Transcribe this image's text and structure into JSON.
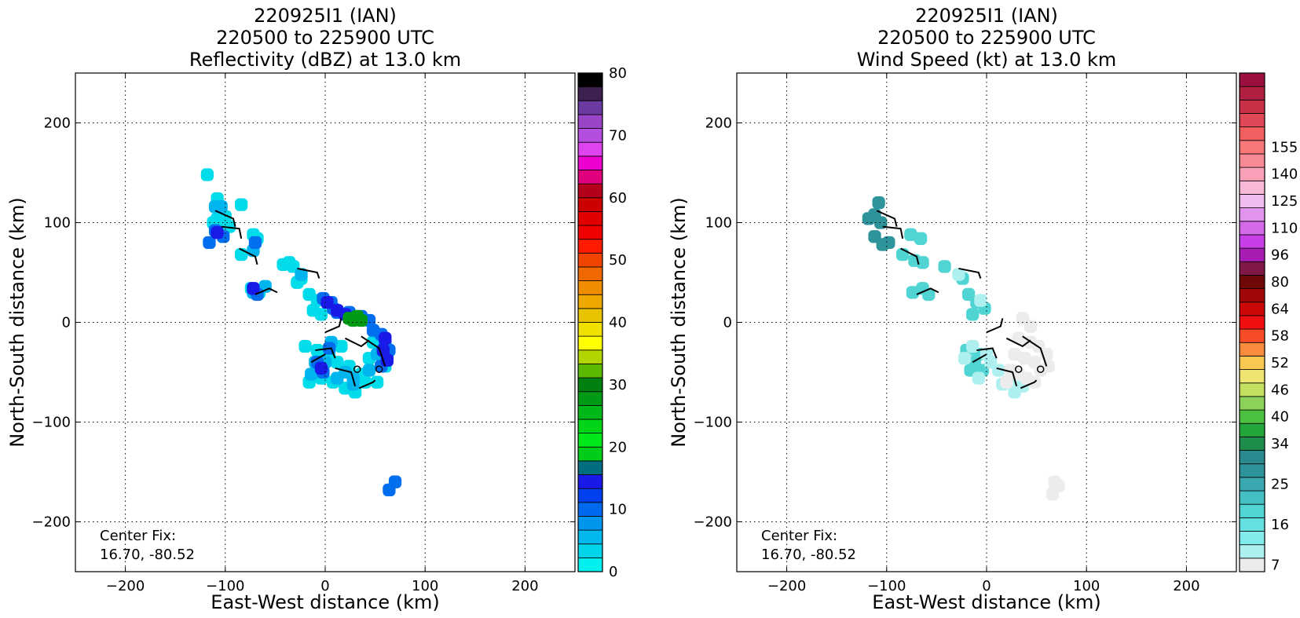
{
  "chart_data": [
    {
      "type": "heatmap",
      "title_lines": [
        "220925I1 (IAN)",
        "220500 to 225900 UTC",
        "Reflectivity (dBZ) at 13.0 km"
      ],
      "xlabel": "East-West distance (km)",
      "ylabel": "North-South distance (km)",
      "xlim": [
        -250,
        250
      ],
      "ylim": [
        -250,
        250
      ],
      "x_ticks": [
        -200,
        -100,
        0,
        100,
        200
      ],
      "y_ticks": [
        -200,
        -100,
        0,
        100,
        200
      ],
      "grid": true,
      "annotation_lines": [
        "Center Fix:",
        "16.70, -80.52"
      ],
      "colorbar": {
        "min": 0,
        "max": 80,
        "tick_labels": [
          "0",
          "10",
          "20",
          "30",
          "40",
          "50",
          "60",
          "70",
          "80"
        ],
        "tick_values": [
          0,
          10,
          20,
          30,
          40,
          50,
          60,
          70,
          80
        ],
        "colors": [
          "#00f0f0",
          "#00d4ea",
          "#00b7ee",
          "#0096ee",
          "#006aee",
          "#0040ee",
          "#1a1ae8",
          "#006d80",
          "#00cc1a",
          "#00e81a",
          "#00d418",
          "#00b818",
          "#009a14",
          "#008010",
          "#5cb800",
          "#b4d400",
          "#ffff00",
          "#f0e000",
          "#e8c400",
          "#eea800",
          "#f08c00",
          "#f06800",
          "#f04400",
          "#ff1a00",
          "#f00000",
          "#e00000",
          "#cc0000",
          "#b4001c",
          "#e0007e",
          "#ee00d0",
          "#dd44ee",
          "#b44ee0",
          "#9a44c8",
          "#6a3aa0",
          "#3c2050",
          "#000000"
        ]
      },
      "fields": [
        {
          "color": "#00dcea",
          "cells": [
            [
              -112,
              100
            ],
            [
              -108,
              104
            ],
            [
              -104,
              100
            ],
            [
              -100,
              106
            ],
            [
              -96,
              96
            ],
            [
              -72,
              88
            ],
            [
              -68,
              84
            ],
            [
              -84,
              68
            ],
            [
              -74,
              34
            ],
            [
              -66,
              30
            ],
            [
              -42,
              58
            ],
            [
              -32,
              56
            ],
            [
              -24,
              44
            ],
            [
              -16,
              28
            ],
            [
              -8,
              22
            ],
            [
              -12,
              12
            ],
            [
              -4,
              8
            ],
            [
              -8,
              -28
            ],
            [
              4,
              -32
            ],
            [
              12,
              -40
            ],
            [
              24,
              -44
            ],
            [
              36,
              -52
            ],
            [
              40,
              -60
            ],
            [
              30,
              -70
            ],
            [
              20,
              -66
            ],
            [
              8,
              -60
            ],
            [
              -4,
              -56
            ],
            [
              -8,
              -48
            ],
            [
              44,
              -36
            ],
            [
              56,
              -28
            ],
            [
              48,
              -20
            ],
            [
              60,
              -44
            ],
            [
              -118,
              148
            ],
            [
              -108,
              124
            ],
            [
              -84,
              118
            ],
            [
              -36,
              60
            ],
            [
              -28,
              40
            ],
            [
              -20,
              -24
            ],
            [
              16,
              -24
            ],
            [
              52,
              -60
            ],
            [
              -16,
              -60
            ]
          ]
        },
        {
          "color": "#00b4ee",
          "cells": [
            [
              -110,
              116
            ],
            [
              -104,
              116
            ],
            [
              -72,
              72
            ],
            [
              -72,
              30
            ],
            [
              -60,
              36
            ],
            [
              -24,
              48
            ],
            [
              -10,
              -40
            ],
            [
              0,
              -40
            ],
            [
              6,
              -20
            ],
            [
              20,
              -50
            ],
            [
              28,
              -56
            ],
            [
              12,
              -56
            ],
            [
              52,
              -32
            ],
            [
              60,
              -20
            ],
            [
              44,
              -48
            ],
            [
              -14,
              -52
            ],
            [
              28,
              -62
            ]
          ]
        },
        {
          "color": "#006eee",
          "cells": [
            [
              -110,
              92
            ],
            [
              -102,
              86
            ],
            [
              -116,
              80
            ],
            [
              -70,
              80
            ],
            [
              -68,
              28
            ],
            [
              -2,
              24
            ],
            [
              6,
              20
            ],
            [
              8,
              14
            ],
            [
              12,
              10
            ],
            [
              24,
              10
            ],
            [
              36,
              6
            ],
            [
              44,
              2
            ],
            [
              56,
              -12
            ],
            [
              60,
              -22
            ],
            [
              62,
              -36
            ],
            [
              56,
              -44
            ],
            [
              -8,
              -40
            ],
            [
              -2,
              -50
            ],
            [
              4,
              -26
            ],
            [
              48,
              -8
            ],
            [
              64,
              -28
            ],
            [
              70,
              -160
            ],
            [
              64,
              -168
            ]
          ]
        },
        {
          "color": "#1a1ae8",
          "cells": [
            [
              -108,
              90
            ],
            [
              -72,
              34
            ],
            [
              2,
              20
            ],
            [
              12,
              12
            ],
            [
              20,
              8
            ],
            [
              60,
              -16
            ],
            [
              58,
              -28
            ],
            [
              62,
              -38
            ],
            [
              -4,
              -46
            ]
          ]
        },
        {
          "color": "#009a14",
          "cells": [
            [
              28,
              2
            ],
            [
              32,
              6
            ],
            [
              36,
              2
            ],
            [
              24,
              4
            ]
          ]
        }
      ]
    },
    {
      "type": "heatmap",
      "title_lines": [
        "220925I1 (IAN)",
        "220500 to 225900 UTC",
        "Wind Speed (kt) at 13.0 km"
      ],
      "xlabel": "East-West distance (km)",
      "ylabel": "North-South distance (km)",
      "xlim": [
        -250,
        250
      ],
      "ylim": [
        -250,
        250
      ],
      "x_ticks": [
        -200,
        -100,
        0,
        100,
        200
      ],
      "y_ticks": [
        -200,
        -100,
        0,
        100,
        200
      ],
      "grid": true,
      "annotation_lines": [
        "Center Fix:",
        "16.70, -80.52"
      ],
      "colorbar": {
        "min": 0,
        "max": 160,
        "tick_labels": [
          "7",
          "16",
          "25",
          "34",
          "40",
          "46",
          "52",
          "58",
          "64",
          "80",
          "96",
          "110",
          "125",
          "140",
          "155"
        ],
        "level_index": [
          0,
          3,
          6,
          9,
          11,
          13,
          15,
          17,
          19,
          21,
          23,
          25,
          27,
          29,
          31
        ],
        "colors": [
          "#ececec",
          "#aef0f0",
          "#82ecec",
          "#64e0e0",
          "#50d4d4",
          "#44c0c4",
          "#3aa8b0",
          "#2e949c",
          "#2a8a90",
          "#1e8c4a",
          "#22a63a",
          "#4cc040",
          "#8cd25a",
          "#c4e060",
          "#f0e470",
          "#f8c850",
          "#f88c3c",
          "#f84c28",
          "#f01010",
          "#cc0808",
          "#a00808",
          "#700808",
          "#801848",
          "#a81cb4",
          "#c83ee8",
          "#d46ae8",
          "#e094ee",
          "#f0bcee",
          "#f8b8d8",
          "#f8a0b8",
          "#f88a98",
          "#f87878",
          "#f06060",
          "#e04858",
          "#c83048",
          "#b01e40",
          "#9c1040"
        ]
      },
      "fields": [
        {
          "color": "#2e949c",
          "cells": [
            [
              -112,
              108
            ],
            [
              -106,
              100
            ],
            [
              -112,
              86
            ],
            [
              -104,
              78
            ],
            [
              -98,
              80
            ],
            [
              -108,
              120
            ],
            [
              -118,
              104
            ]
          ]
        },
        {
          "color": "#50d4d4",
          "cells": [
            [
              -76,
              88
            ],
            [
              -66,
              84
            ],
            [
              -84,
              68
            ],
            [
              -72,
              62
            ],
            [
              -64,
              60
            ],
            [
              -74,
              30
            ],
            [
              -64,
              34
            ],
            [
              -58,
              28
            ],
            [
              -42,
              56
            ],
            [
              -24,
              44
            ],
            [
              -18,
              28
            ],
            [
              -10,
              20
            ],
            [
              -2,
              14
            ],
            [
              -14,
              8
            ],
            [
              -20,
              -28
            ],
            [
              -8,
              -32
            ],
            [
              -12,
              -40
            ],
            [
              -16,
              -48
            ],
            [
              -4,
              -48
            ]
          ]
        },
        {
          "color": "#aef0f0",
          "cells": [
            [
              -28,
              48
            ],
            [
              -6,
              22
            ],
            [
              -22,
              -36
            ],
            [
              -14,
              -24
            ],
            [
              0,
              -32
            ],
            [
              4,
              -40
            ],
            [
              12,
              -48
            ],
            [
              24,
              -58
            ],
            [
              36,
              -64
            ],
            [
              28,
              -70
            ],
            [
              16,
              -62
            ],
            [
              -8,
              -56
            ]
          ]
        },
        {
          "color": "#ececec",
          "cells": [
            [
              36,
              4
            ],
            [
              44,
              -4
            ],
            [
              32,
              -16
            ],
            [
              44,
              -20
            ],
            [
              52,
              -24
            ],
            [
              60,
              -32
            ],
            [
              62,
              -44
            ],
            [
              54,
              -48
            ],
            [
              48,
              -40
            ],
            [
              38,
              -36
            ],
            [
              28,
              -32
            ],
            [
              24,
              -48
            ],
            [
              32,
              -52
            ],
            [
              40,
              -56
            ],
            [
              20,
              -60
            ],
            [
              48,
              -60
            ],
            [
              68,
              -160
            ],
            [
              72,
              -164
            ],
            [
              66,
              -172
            ]
          ]
        }
      ]
    }
  ]
}
